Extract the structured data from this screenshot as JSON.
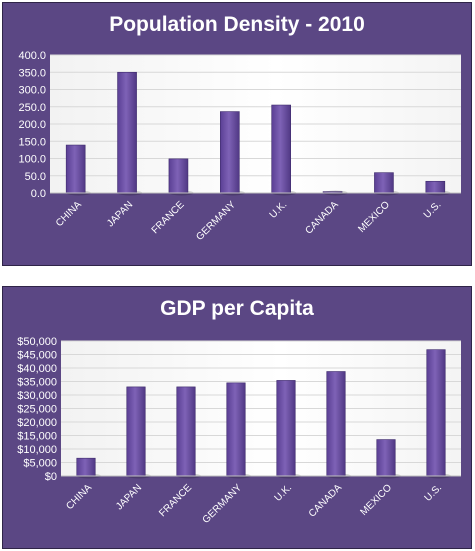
{
  "chart_data": [
    {
      "type": "bar",
      "title": "Population Density - 2010",
      "categories": [
        "CHINA",
        "JAPAN",
        "FRANCE",
        "GERMANY",
        "U.K.",
        "CANADA",
        "MEXICO",
        "U.S."
      ],
      "values": [
        139,
        350,
        99,
        236,
        255,
        4,
        59,
        34
      ],
      "ylim": [
        0,
        400
      ],
      "yticks": [
        "0.0",
        "50.0",
        "100.0",
        "150.0",
        "200.0",
        "250.0",
        "300.0",
        "350.0",
        "400.0"
      ],
      "grid": true,
      "colors": {
        "panel": "#5b4784",
        "plot": "#ffffff",
        "bar": "#7e62b6",
        "grid": "#d8d8d8"
      }
    },
    {
      "type": "bar",
      "title": "GDP per Capita",
      "categories": [
        "CHINA",
        "JAPAN",
        "FRANCE",
        "GERMANY",
        "U.K.",
        "CANADA",
        "MEXICO",
        "U.S."
      ],
      "values": [
        6600,
        33000,
        33000,
        34500,
        35400,
        38700,
        13500,
        46800
      ],
      "ylim": [
        0,
        50000
      ],
      "yticks": [
        "$0",
        "$5,000",
        "$10,000",
        "$15,000",
        "$20,000",
        "$25,000",
        "$30,000",
        "$35,000",
        "$40,000",
        "$45,000",
        "$50,000"
      ],
      "grid": true,
      "colors": {
        "panel": "#5b4784",
        "plot": "#ffffff",
        "bar": "#7e62b6",
        "grid": "#d8d8d8"
      }
    }
  ]
}
